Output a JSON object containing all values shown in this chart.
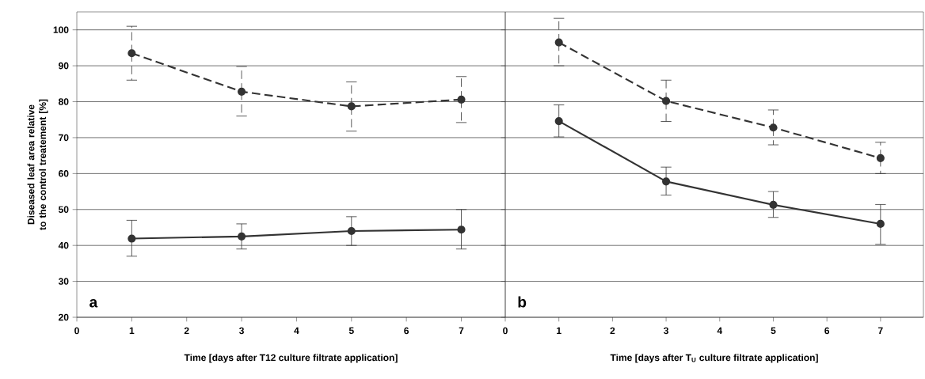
{
  "chart_data": [
    {
      "type": "line",
      "xlabel": "Time [days after T12 culture filtrate application]",
      "ylabel": "Diseased leaf area relative to the control treatement [%]",
      "annotations": [
        "a"
      ],
      "xlim": [
        0,
        7.8
      ],
      "xticks": [
        0,
        1,
        2,
        3,
        4,
        5,
        6,
        7
      ],
      "ylim": [
        20,
        105
      ],
      "yticks": [
        20,
        30,
        40,
        50,
        60,
        70,
        80,
        90,
        100
      ],
      "grid": "y",
      "marker": "circle",
      "x": [
        1,
        3,
        5,
        7
      ],
      "series": [
        {
          "color": "#333333",
          "line_style": "dashed",
          "values": [
            93.5,
            82.8,
            78.7,
            80.6
          ],
          "errors": [
            [
              86,
              101
            ],
            [
              76,
              89.8
            ],
            [
              71.8,
              85.5
            ],
            [
              74.2,
              87
            ]
          ]
        },
        {
          "color": "#333333",
          "line_style": "solid",
          "values": [
            41.9,
            42.5,
            44,
            44.4
          ],
          "errors": [
            [
              37,
              47
            ],
            [
              39,
              46
            ],
            [
              40,
              48
            ],
            [
              39,
              50
            ]
          ]
        }
      ]
    },
    {
      "type": "line",
      "xlabel": "Time [days after T$_{U}$ culture filtrate application]",
      "annotations": [
        "b"
      ],
      "xlim": [
        0,
        7.8
      ],
      "xticks": [
        0,
        1,
        2,
        3,
        4,
        5,
        6,
        7
      ],
      "ylim": [
        20,
        105
      ],
      "yticks": [
        20,
        30,
        40,
        50,
        60,
        70,
        80,
        90,
        100
      ],
      "grid": "y",
      "marker": "circle",
      "tick_labels": "x",
      "x": [
        1,
        3,
        5,
        7
      ],
      "series": [
        {
          "color": "#333333",
          "line_style": "dashed",
          "values": [
            96.5,
            80.2,
            72.8,
            64.3
          ],
          "errors": [
            [
              90,
              103.2
            ],
            [
              74.5,
              86
            ],
            [
              68,
              77.7
            ],
            [
              60,
              68.7
            ]
          ]
        },
        {
          "color": "#333333",
          "line_style": "solid",
          "values": [
            74.6,
            57.8,
            51.3,
            46
          ],
          "errors": [
            [
              70.2,
              79.1
            ],
            [
              54,
              61.8
            ],
            [
              47.8,
              55
            ],
            [
              40.3,
              51.4
            ]
          ]
        }
      ]
    }
  ]
}
